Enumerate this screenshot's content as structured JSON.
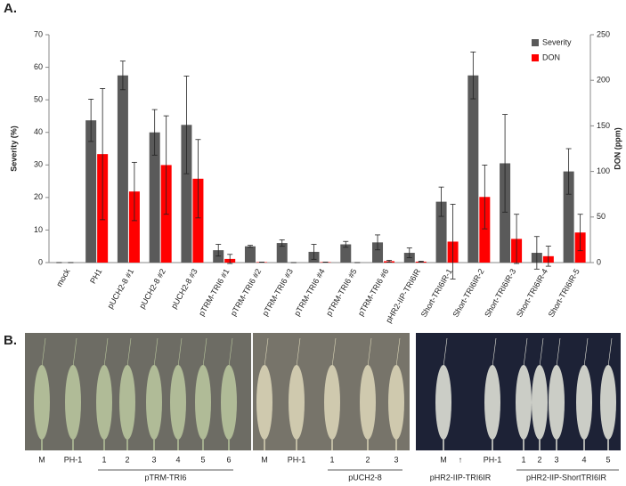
{
  "panel_labels": [
    "A.",
    "B."
  ],
  "chart_data": {
    "type": "bar",
    "y_label": "Severity  (%)",
    "y2_label": "DON (ppm)",
    "categories": [
      "mock",
      "PH1",
      "pUCH2-8 #1",
      "pUCH2-8 #2",
      "pUCH2-8 #3",
      "pTRM-TRI6 #1",
      "pTRM-TRI6 #2",
      "pTRM-TRI6 #3",
      "pTRM-TRI6 #4",
      "pTRM-TRI6 #5",
      "pTRM-TRI6 #6",
      "pHR2-IIP-TRI6IR",
      "Short-TRI6IR-1",
      "Short-TRI6IR-2",
      "Short-TRI6IR-3",
      "Short-TRI6IR-4",
      "Short-TRI6IR-5"
    ],
    "series": [
      {
        "name": "Severity",
        "color": "#5a5a5a",
        "values": [
          0,
          43.7,
          57.5,
          40,
          42.3,
          3.8,
          5,
          6,
          3.3,
          5.6,
          6.2,
          3,
          18.7,
          57.5,
          30.5,
          3,
          28
        ],
        "errors": [
          0,
          6.5,
          4.4,
          7,
          15,
          1.8,
          0.3,
          1,
          2.3,
          0.9,
          2.3,
          1.5,
          4.5,
          7.2,
          15,
          5,
          7
        ]
      },
      {
        "name": "DON",
        "color": "#ff0000",
        "axis": "y2",
        "values": [
          0,
          119,
          78,
          107,
          92,
          4,
          0.5,
          0,
          0.5,
          0,
          1.5,
          1,
          23,
          72,
          26,
          7,
          33
        ],
        "errors": [
          0,
          72,
          32,
          54,
          43,
          5,
          0,
          0,
          0,
          0,
          1,
          0.5,
          41,
          35,
          27,
          11,
          20
        ]
      }
    ],
    "ylim": [
      0,
      70
    ],
    "yticks": [
      0,
      10,
      20,
      30,
      40,
      50,
      60,
      70
    ],
    "y2lim": [
      0,
      250
    ],
    "y2ticks": [
      0,
      50,
      100,
      150,
      200,
      250
    ],
    "grid": false,
    "legend": "upper right"
  },
  "photo_panel": {
    "panels": [
      {
        "labels": [
          "M",
          "PH-1",
          "1",
          "2",
          "3",
          "4",
          "5",
          "6"
        ],
        "group_label": "pTRM-TRI6"
      },
      {
        "labels": [
          "M",
          "PH-1",
          "1",
          "2",
          "3"
        ],
        "group_label": "pUCH2-8"
      },
      {
        "labels": [
          "M",
          "↑",
          "PH-1",
          "1",
          "2",
          "3",
          "4",
          "5"
        ],
        "group_label": "pHR2-IIP-ShortTRI6IR",
        "arrow_label": "pHR2-IIP-TRI6IR"
      }
    ]
  }
}
